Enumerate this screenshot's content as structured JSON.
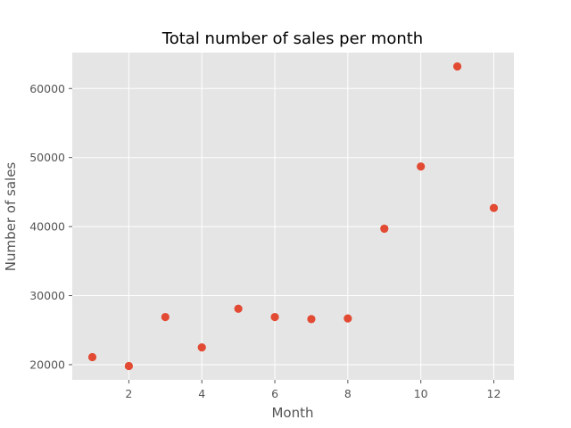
{
  "chart_data": {
    "type": "scatter",
    "title": "Total number of sales per month",
    "xlabel": "Month",
    "ylabel": "Number of sales",
    "xlim": [
      0.45,
      12.55
    ],
    "ylim": [
      17800,
      65200
    ],
    "xticks": [
      2,
      4,
      6,
      8,
      10,
      12
    ],
    "xtick_labels": [
      "2",
      "4",
      "6",
      "8",
      "10",
      "12"
    ],
    "yticks": [
      20000,
      30000,
      40000,
      50000,
      60000
    ],
    "ytick_labels": [
      "20000",
      "30000",
      "40000",
      "50000",
      "60000"
    ],
    "grid": true,
    "series": [
      {
        "color": "#E24A33",
        "x": [
          1,
          2,
          3,
          4,
          5,
          6,
          7,
          8,
          9,
          10,
          11,
          12
        ],
        "y": [
          21100,
          19800,
          26900,
          22500,
          28100,
          26900,
          26600,
          26700,
          39700,
          48700,
          63200,
          42700
        ]
      }
    ]
  },
  "colors": {
    "plot_background": "#E5E5E5",
    "grid": "#FFFFFF",
    "tick": "#555555"
  }
}
